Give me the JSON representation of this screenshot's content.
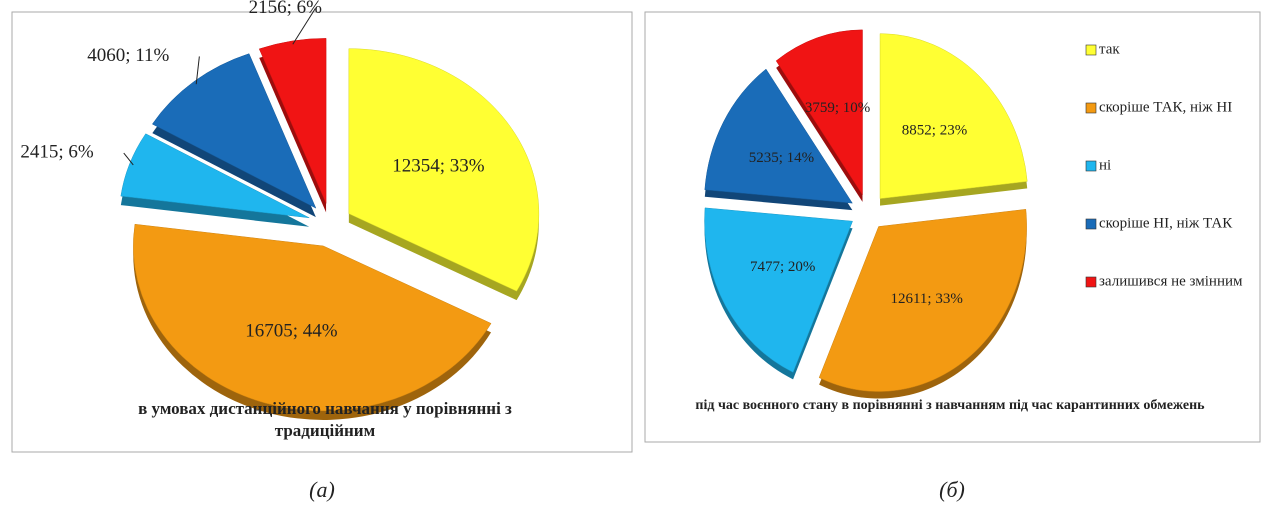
{
  "chart_data": [
    {
      "type": "pie",
      "title": "в умовах дистанційного  навчання у порівнянні з традиційним",
      "caption": "(а)",
      "values": [
        12354,
        16705,
        2415,
        4060,
        2156
      ],
      "value_labels": [
        "12354; 33%",
        "16705; 44%",
        "2415; 6%",
        "4060; 11%",
        "2156; 6%"
      ],
      "colors": [
        "#ffff33",
        "#f39a12",
        "#1fb6ee",
        "#1a6cb8",
        "#f01414"
      ]
    },
    {
      "type": "pie",
      "title": "під час воєнного стану в порівнянні з навчанням під час карантинних обмежень",
      "caption": "(б)",
      "categories": [
        "так",
        "скоріше ТАК, ніж НІ",
        "ні",
        "скоріше НІ, ніж ТАК",
        "залишився не змінним"
      ],
      "values": [
        8852,
        12611,
        7477,
        5235,
        3759
      ],
      "value_labels": [
        "8852; 23%",
        "12611; 33%",
        "7477; 20%",
        "5235; 14%",
        "3759; 10%"
      ],
      "colors": [
        "#ffff33",
        "#f39a12",
        "#1fb6ee",
        "#1a6cb8",
        "#f01414"
      ],
      "legend": "right"
    }
  ]
}
